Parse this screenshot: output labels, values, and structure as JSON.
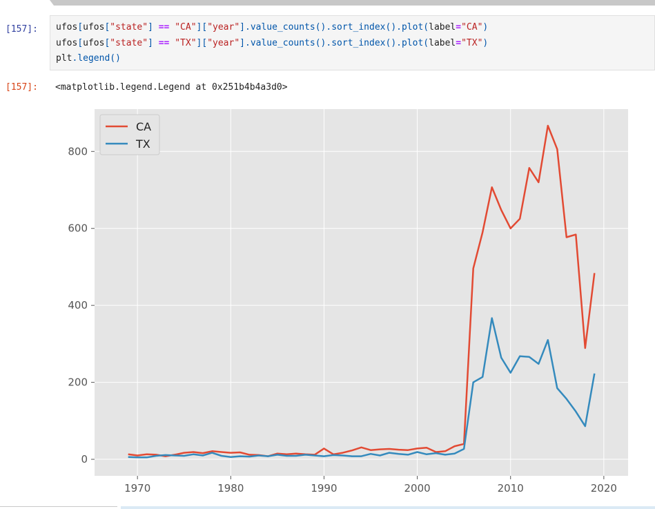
{
  "cell": {
    "input_prompt": "[157]:",
    "output_prompt": "[157]:",
    "code_lines": [
      [
        [
          "n",
          "ufos"
        ],
        [
          "p",
          "["
        ],
        [
          "n",
          "ufos"
        ],
        [
          "p",
          "["
        ],
        [
          "s",
          "\"state\""
        ],
        [
          "p",
          "]"
        ],
        [
          "n",
          " "
        ],
        [
          "o",
          "=="
        ],
        [
          "n",
          " "
        ],
        [
          "s",
          "\"CA\""
        ],
        [
          "p",
          "]["
        ],
        [
          "s",
          "\"year\""
        ],
        [
          "p",
          "]."
        ],
        [
          "f",
          "value_counts"
        ],
        [
          "p",
          "()."
        ],
        [
          "f",
          "sort_index"
        ],
        [
          "p",
          "()."
        ],
        [
          "f",
          "plot"
        ],
        [
          "p",
          "("
        ],
        [
          "n",
          "label"
        ],
        [
          "o",
          "="
        ],
        [
          "s",
          "\"CA\""
        ],
        [
          "p",
          ")"
        ]
      ],
      [
        [
          "n",
          "ufos"
        ],
        [
          "p",
          "["
        ],
        [
          "n",
          "ufos"
        ],
        [
          "p",
          "["
        ],
        [
          "s",
          "\"state\""
        ],
        [
          "p",
          "]"
        ],
        [
          "n",
          " "
        ],
        [
          "o",
          "=="
        ],
        [
          "n",
          " "
        ],
        [
          "s",
          "\"TX\""
        ],
        [
          "p",
          "]["
        ],
        [
          "s",
          "\"year\""
        ],
        [
          "p",
          "]."
        ],
        [
          "f",
          "value_counts"
        ],
        [
          "p",
          "()."
        ],
        [
          "f",
          "sort_index"
        ],
        [
          "p",
          "()."
        ],
        [
          "f",
          "plot"
        ],
        [
          "p",
          "("
        ],
        [
          "n",
          "label"
        ],
        [
          "o",
          "="
        ],
        [
          "s",
          "\"TX\""
        ],
        [
          "p",
          ")"
        ]
      ],
      [
        [
          "n",
          "plt"
        ],
        [
          "p",
          "."
        ],
        [
          "f",
          "legend"
        ],
        [
          "p",
          "()"
        ]
      ]
    ],
    "output_text": "<matplotlib.legend.Legend at 0x251b4b4a3d0>"
  },
  "chart_data": {
    "type": "line",
    "title": "",
    "xlabel": "",
    "ylabel": "",
    "xlim": [
      1965.4,
      2022.6
    ],
    "ylim": [
      -43,
      910
    ],
    "xticks": [
      1970,
      1980,
      1990,
      2000,
      2010,
      2020
    ],
    "yticks": [
      0,
      200,
      400,
      600,
      800
    ],
    "grid": true,
    "legend_position": "upper-left",
    "series": [
      {
        "name": "CA",
        "color": "#e24a33",
        "x": [
          1969,
          1970,
          1971,
          1972,
          1973,
          1974,
          1975,
          1976,
          1977,
          1978,
          1979,
          1980,
          1981,
          1982,
          1983,
          1984,
          1985,
          1986,
          1987,
          1988,
          1989,
          1990,
          1991,
          1992,
          1993,
          1994,
          1995,
          1996,
          1997,
          1998,
          1999,
          2000,
          2001,
          2002,
          2003,
          2004,
          2005,
          2006,
          2007,
          2008,
          2009,
          2010,
          2011,
          2012,
          2013,
          2014,
          2015,
          2016,
          2017,
          2018,
          2019
        ],
        "values": [
          13,
          10,
          13,
          12,
          8,
          12,
          17,
          19,
          16,
          21,
          19,
          17,
          18,
          12,
          11,
          8,
          15,
          13,
          15,
          13,
          12,
          28,
          13,
          17,
          23,
          31,
          24,
          26,
          27,
          25,
          24,
          28,
          30,
          19,
          21,
          34,
          40,
          496,
          590,
          707,
          648,
          600,
          625,
          757,
          720,
          867,
          806,
          577,
          584,
          289,
          484
        ]
      },
      {
        "name": "TX",
        "color": "#348abd",
        "x": [
          1969,
          1970,
          1971,
          1972,
          1973,
          1974,
          1975,
          1976,
          1977,
          1978,
          1979,
          1980,
          1981,
          1982,
          1983,
          1984,
          1985,
          1986,
          1987,
          1988,
          1989,
          1990,
          1991,
          1992,
          1993,
          1994,
          1995,
          1996,
          1997,
          1998,
          1999,
          2000,
          2001,
          2002,
          2003,
          2004,
          2005,
          2006,
          2007,
          2008,
          2009,
          2010,
          2011,
          2012,
          2013,
          2014,
          2015,
          2016,
          2017,
          2018,
          2019
        ],
        "values": [
          6,
          5,
          5,
          9,
          11,
          10,
          9,
          13,
          10,
          17,
          9,
          6,
          8,
          7,
          10,
          8,
          12,
          9,
          9,
          12,
          10,
          8,
          11,
          10,
          8,
          8,
          14,
          10,
          17,
          14,
          12,
          19,
          13,
          16,
          12,
          15,
          27,
          200,
          214,
          367,
          264,
          225,
          268,
          266,
          248,
          310,
          185,
          157,
          124,
          86,
          223
        ]
      }
    ]
  }
}
